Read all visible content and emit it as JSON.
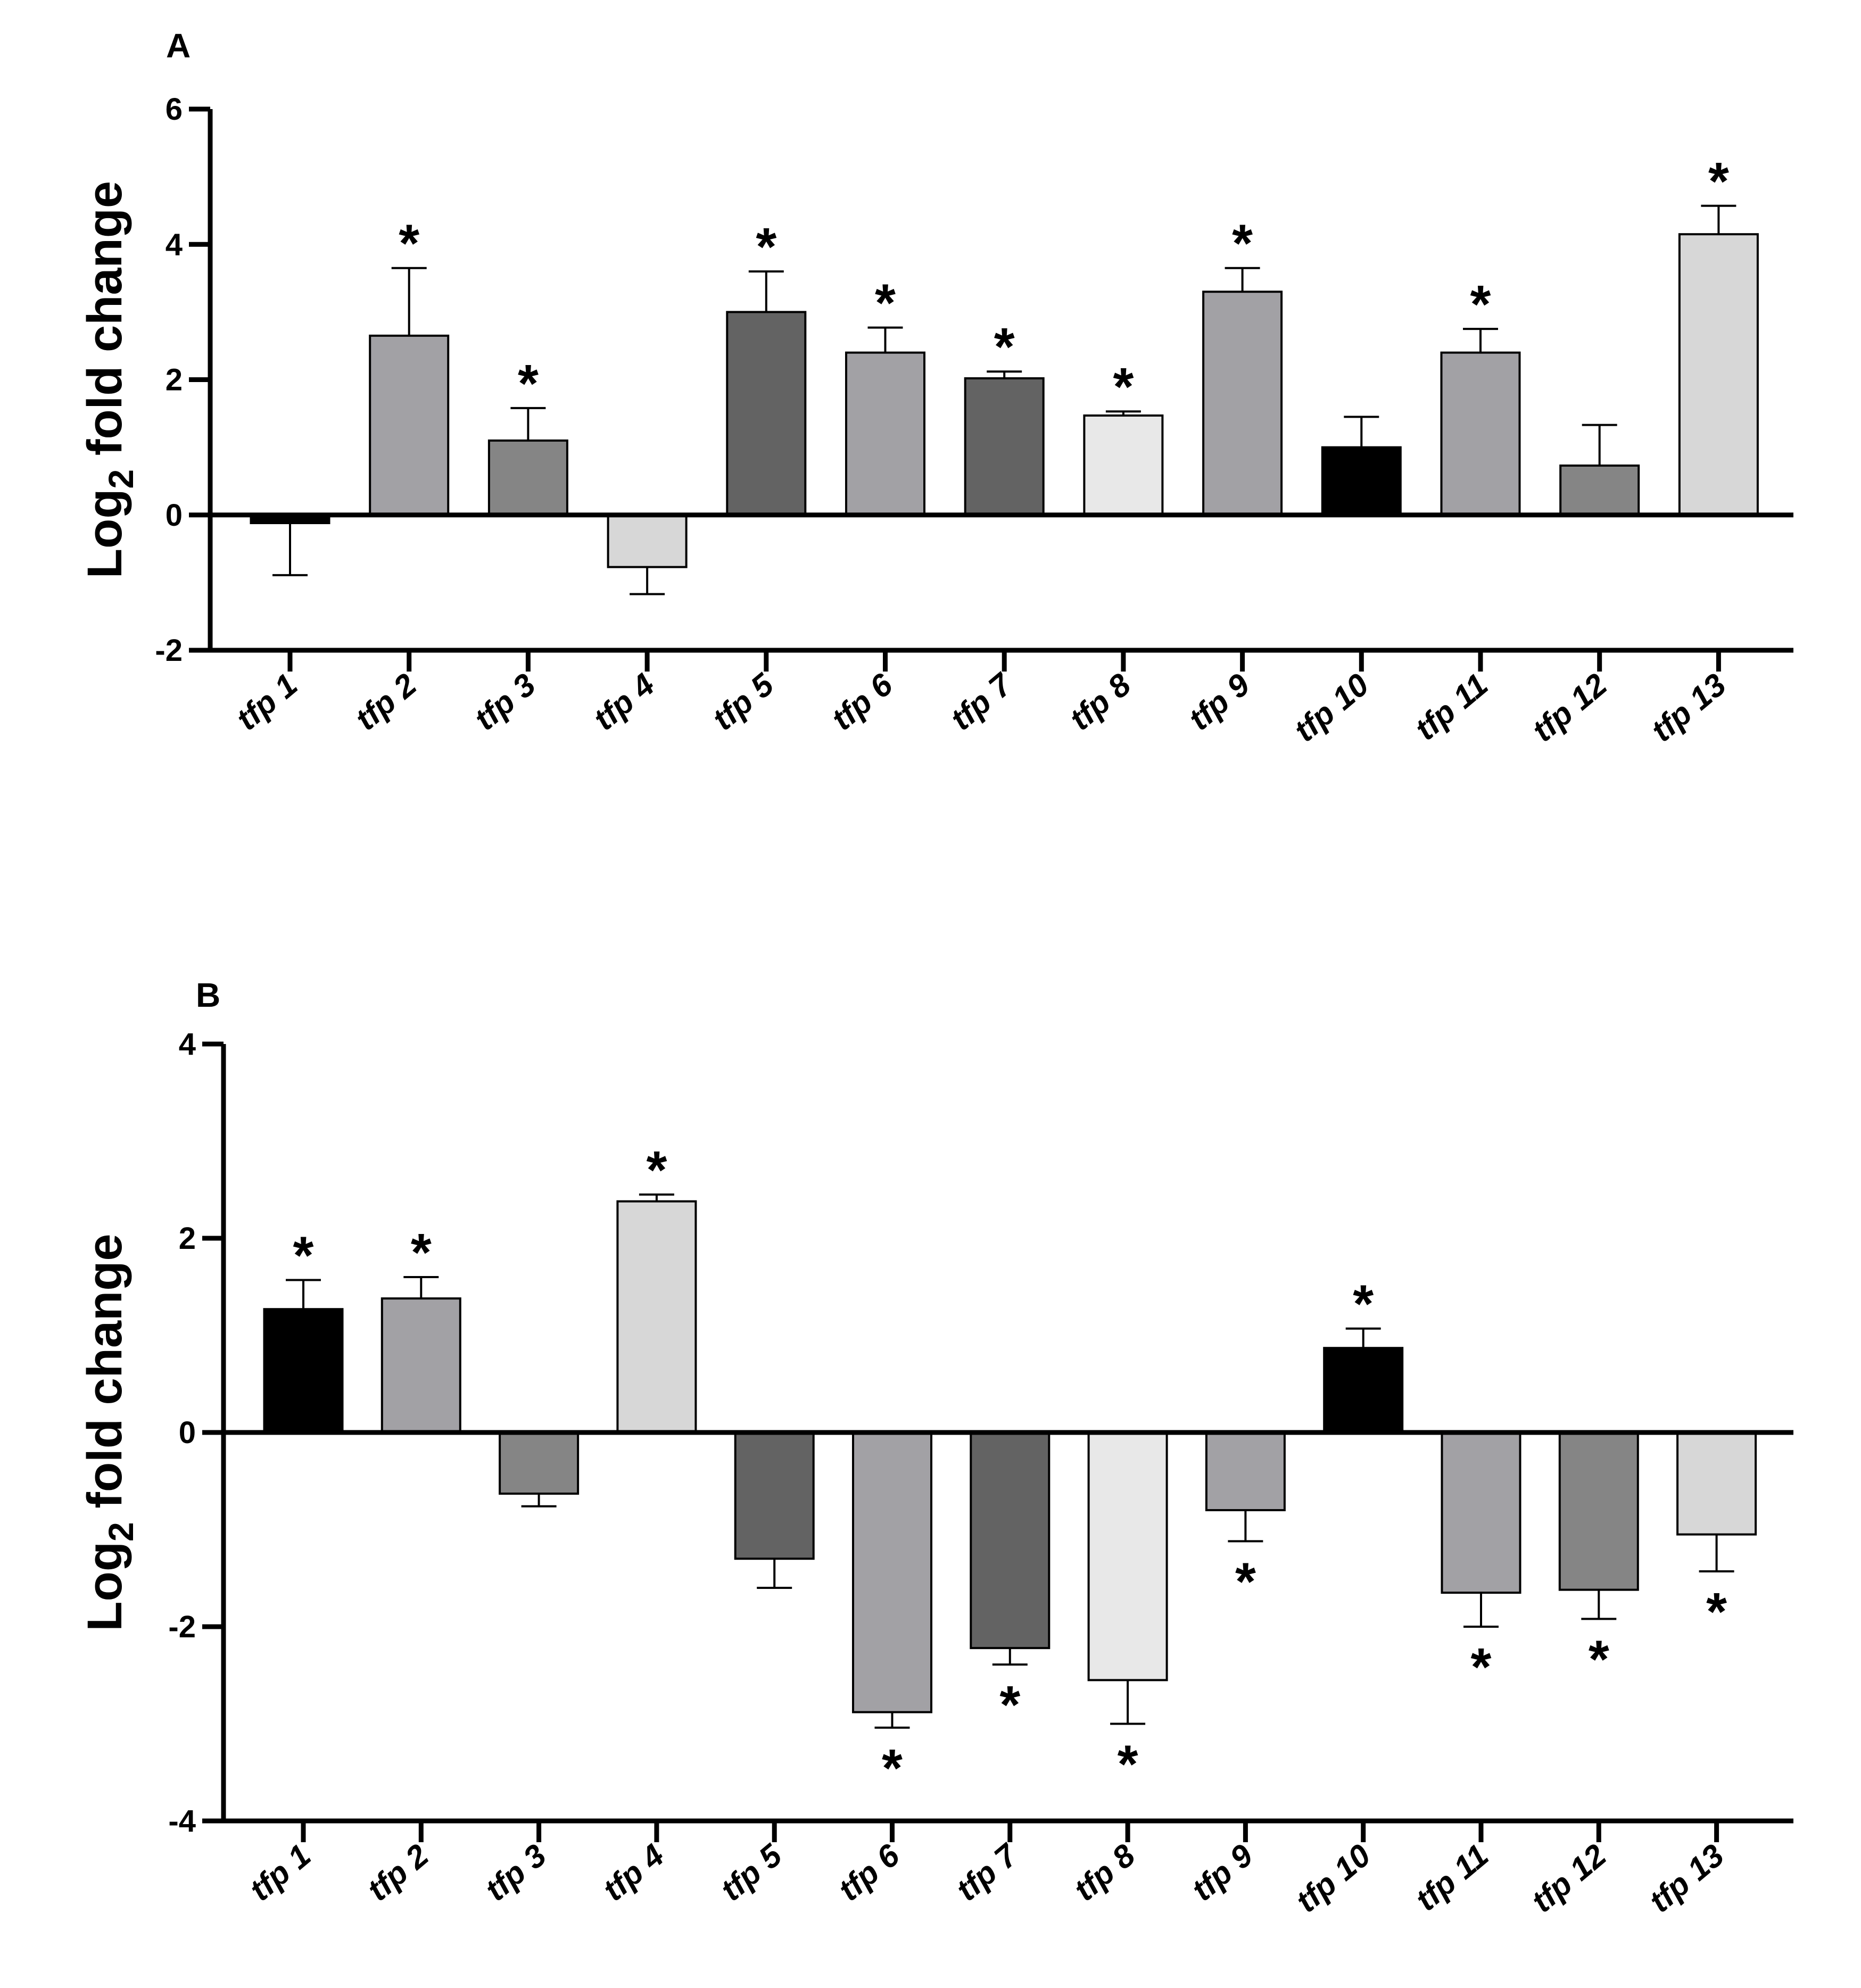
{
  "chart_data": [
    {
      "panel": "A",
      "type": "bar",
      "ylabel_main": "Log",
      "ylabel_sub": "2",
      "ylabel_rest": " fold change",
      "ylim": [
        -2,
        6
      ],
      "yticks": [
        "-2",
        "0",
        "2",
        "4",
        "6"
      ],
      "yticks_values": [
        -2,
        0,
        2,
        4,
        6
      ],
      "categories": [
        "tfp 1",
        "tfp 2",
        "tfp 3",
        "tfp 4",
        "tfp 5",
        "tfp 6",
        "tfp 7",
        "tfp 8",
        "tfp 9",
        "tfp 10",
        "tfp 11",
        "tfp 12",
        "tfp 13"
      ],
      "values": [
        -0.12,
        2.65,
        1.1,
        -0.77,
        3.0,
        2.4,
        2.02,
        1.47,
        3.3,
        1.0,
        2.4,
        0.73,
        4.15
      ],
      "errors": [
        0.77,
        1.0,
        0.48,
        0.4,
        0.6,
        0.37,
        0.1,
        0.06,
        0.35,
        0.45,
        0.35,
        0.6,
        0.42
      ],
      "significant": [
        false,
        true,
        true,
        false,
        true,
        true,
        true,
        true,
        true,
        false,
        true,
        false,
        true
      ],
      "star_symbol": "*",
      "colors": [
        "#000000",
        "#a2a1a5",
        "#858585",
        "#d7d7d7",
        "#636363",
        "#a2a1a5",
        "#636363",
        "#e8e8e8",
        "#a2a1a5",
        "#000000",
        "#a2a1a5",
        "#858585",
        "#d7d7d7"
      ],
      "grid": false
    },
    {
      "panel": "B",
      "type": "bar",
      "ylabel_main": "Log",
      "ylabel_sub": "2",
      "ylabel_rest": " fold change",
      "ylim": [
        -4,
        4
      ],
      "yticks": [
        "-4",
        "-2",
        "0",
        "2",
        "4"
      ],
      "yticks_values": [
        -4,
        -2,
        0,
        2,
        4
      ],
      "categories": [
        "tfp 1",
        "tfp 2",
        "tfp 3",
        "tfp 4",
        "tfp 5",
        "tfp 6",
        "tfp 7",
        "tfp 8",
        "tfp 9",
        "tfp 10",
        "tfp 11",
        "tfp 12",
        "tfp 13"
      ],
      "values": [
        1.27,
        1.38,
        -0.63,
        2.38,
        -1.3,
        -2.88,
        -2.22,
        -2.55,
        -0.8,
        0.87,
        -1.65,
        -1.62,
        -1.05
      ],
      "errors": [
        0.3,
        0.22,
        0.13,
        0.07,
        0.3,
        0.16,
        0.17,
        0.45,
        0.32,
        0.2,
        0.35,
        0.3,
        0.38
      ],
      "significant": [
        true,
        true,
        false,
        true,
        false,
        true,
        true,
        true,
        true,
        true,
        true,
        true,
        true
      ],
      "star_symbol": "*",
      "colors": [
        "#000000",
        "#a2a1a5",
        "#858585",
        "#d7d7d7",
        "#636363",
        "#a2a1a5",
        "#636363",
        "#e8e8e8",
        "#a2a1a5",
        "#000000",
        "#a2a1a5",
        "#858585",
        "#d7d7d7"
      ],
      "grid": false
    }
  ]
}
